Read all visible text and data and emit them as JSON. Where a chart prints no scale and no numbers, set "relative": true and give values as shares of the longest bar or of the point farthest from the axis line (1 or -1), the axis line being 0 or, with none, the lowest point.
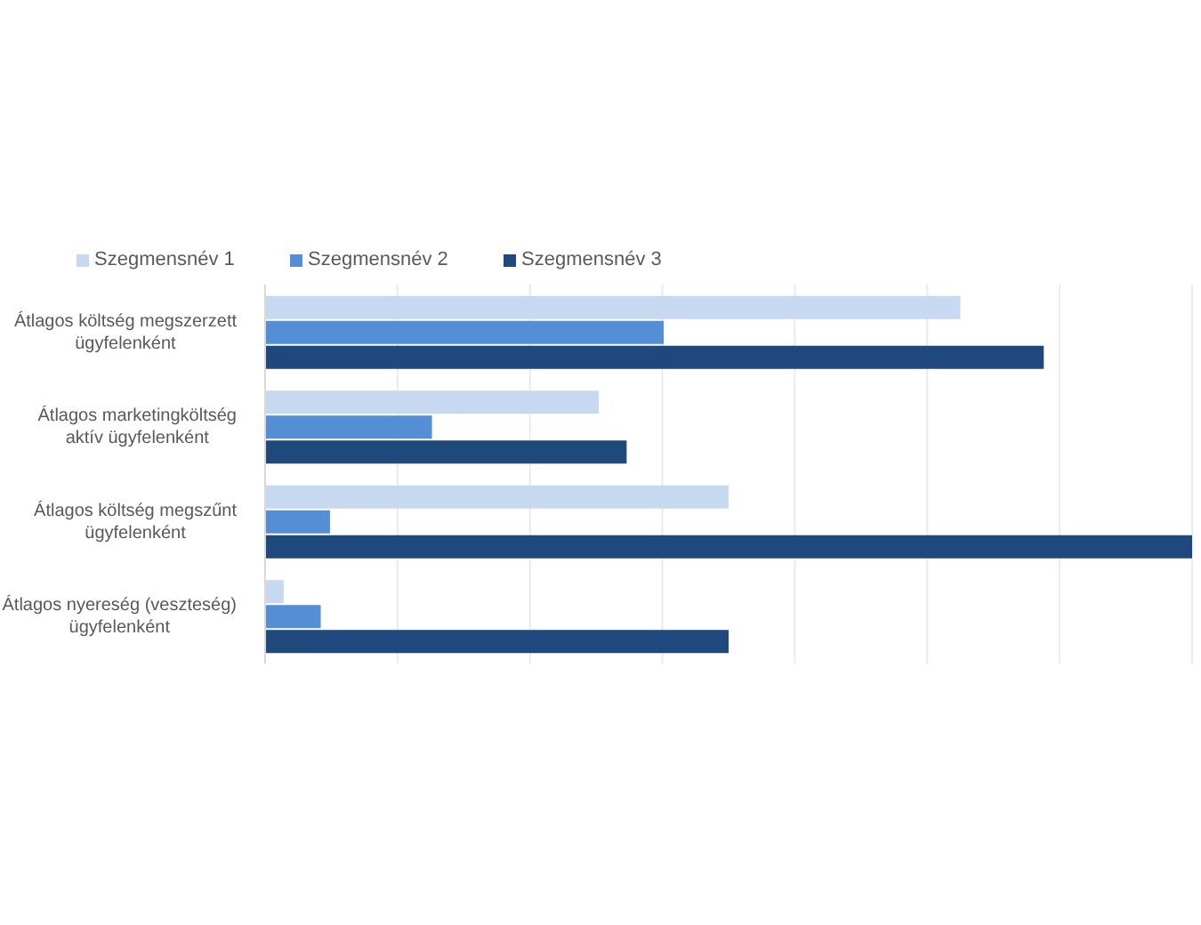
{
  "chart_data": {
    "type": "bar",
    "orientation": "horizontal",
    "relative": true,
    "categories": [
      "Átlagos költség megszerzett ügyfelenként",
      "Átlagos marketingköltség aktív ügyfelenként",
      "Átlagos költség megszűnt ügyfelenként",
      "Átlagos nyereség (veszteség) ügyfelenként"
    ],
    "series": [
      {
        "name": "Szegmensnév 1",
        "color": "#c6d9f1",
        "values": [
          0.75,
          0.36,
          0.5,
          0.02
        ]
      },
      {
        "name": "Szegmensnév 2",
        "color": "#558ed5",
        "values": [
          0.43,
          0.18,
          0.07,
          0.06
        ]
      },
      {
        "name": "Szegmensnév 3",
        "color": "#1f497d",
        "values": [
          0.84,
          0.39,
          1,
          0.5
        ]
      }
    ],
    "grid": "x",
    "legend": "top"
  }
}
